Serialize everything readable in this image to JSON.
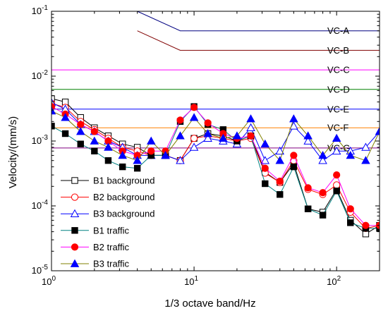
{
  "chart_data": {
    "type": "line",
    "xlabel": "1/3 octave band/Hz",
    "ylabel": "Velocity/(mm/s)",
    "x_scale": "log",
    "y_scale": "log",
    "xlim": [
      1,
      200
    ],
    "ylim": [
      1e-05,
      0.1
    ],
    "grid": false,
    "legend_position": "bottom-left",
    "x_ticks": [
      {
        "value": 1,
        "base": "10",
        "exp": "0"
      },
      {
        "value": 10,
        "base": "10",
        "exp": "1"
      },
      {
        "value": 100,
        "base": "10",
        "exp": "2"
      }
    ],
    "y_ticks": [
      {
        "value": 1e-05,
        "base": "10",
        "exp": "-5"
      },
      {
        "value": 0.0001,
        "base": "10",
        "exp": "-4"
      },
      {
        "value": 0.001,
        "base": "10",
        "exp": "-3"
      },
      {
        "value": 0.01,
        "base": "10",
        "exp": "-2"
      },
      {
        "value": 0.1,
        "base": "10",
        "exp": "-1"
      }
    ],
    "x": [
      1,
      1.25,
      1.6,
      2,
      2.5,
      3.15,
      4,
      5,
      6.3,
      8,
      10,
      12.5,
      16,
      20,
      25,
      31.5,
      40,
      50,
      63,
      80,
      100,
      125,
      160,
      200
    ],
    "series": [
      {
        "name": "B1 background",
        "color": "#000000",
        "marker": "square",
        "filled": false,
        "values": [
          0.0045,
          0.004,
          0.0023,
          0.0016,
          0.0012,
          0.0009,
          0.0008,
          0.0006,
          0.0006,
          0.0005,
          0.0011,
          0.0013,
          0.0012,
          0.001,
          0.0012,
          0.00033,
          0.00023,
          0.00045,
          9e-05,
          8e-05,
          0.00018,
          6e-05,
          3.7e-05,
          5e-05
        ]
      },
      {
        "name": "B2 background",
        "color": "#ff0000",
        "marker": "circle",
        "filled": false,
        "values": [
          0.0038,
          0.0033,
          0.002,
          0.0015,
          0.0011,
          0.0008,
          0.0007,
          0.0006,
          0.0006,
          0.0005,
          0.0011,
          0.0012,
          0.0011,
          0.001,
          0.0011,
          0.00032,
          0.00023,
          0.0005,
          0.00018,
          0.00015,
          0.00021,
          8e-05,
          4.5e-05,
          5e-05
        ]
      },
      {
        "name": "B3 background",
        "color": "#0000ff",
        "marker": "triangle",
        "filled": false,
        "values": [
          0.0039,
          0.0031,
          0.0018,
          0.0014,
          0.001,
          0.0008,
          0.0006,
          0.0006,
          0.0006,
          0.0005,
          0.0008,
          0.0011,
          0.001,
          0.0009,
          0.0016,
          0.0005,
          0.0007,
          0.0017,
          0.001,
          0.0005,
          0.0007,
          0.0007,
          0.0008,
          0.0014
        ]
      },
      {
        "name": "B1 traffic",
        "color": "#008080",
        "marker": "square",
        "filled": true,
        "marker_color": "#000000",
        "values": [
          0.0017,
          0.0013,
          0.0009,
          0.0007,
          0.0005,
          0.0004,
          0.00038,
          0.0006,
          0.0006,
          0.002,
          0.0034,
          0.0018,
          0.0015,
          0.001,
          0.0012,
          0.00022,
          0.00015,
          0.0004,
          9e-05,
          7.2e-05,
          0.00017,
          5.5e-05,
          4.5e-05,
          4.5e-05
        ]
      },
      {
        "name": "B2 traffic",
        "color": "#ff00ff",
        "marker": "circle",
        "filled": true,
        "marker_color": "#ff0000",
        "values": [
          0.0034,
          0.0026,
          0.0018,
          0.0014,
          0.001,
          0.0007,
          0.0006,
          0.0007,
          0.0007,
          0.0021,
          0.0033,
          0.0019,
          0.0013,
          0.0011,
          0.0012,
          0.00038,
          0.00024,
          0.0006,
          0.00019,
          0.00016,
          0.0003,
          9e-05,
          5e-05,
          5e-05
        ]
      },
      {
        "name": "B3 traffic",
        "color": "#808000",
        "marker": "triangle",
        "filled": true,
        "marker_color": "#0000ff",
        "values": [
          0.0029,
          0.0023,
          0.0014,
          0.001,
          0.0008,
          0.0006,
          0.0005,
          0.001,
          0.0006,
          0.0012,
          0.0023,
          0.0013,
          0.0011,
          0.0012,
          0.0022,
          0.0009,
          0.0005,
          0.0022,
          0.0012,
          0.0006,
          0.0011,
          0.0006,
          0.0005,
          0.0014
        ]
      }
    ],
    "criteria": [
      {
        "name": "VC-A",
        "color": "#000080",
        "value": 0.05,
        "start_x": 4,
        "slope_end_x": 8,
        "start_value": 0.1
      },
      {
        "name": "VC-B",
        "color": "#800000",
        "value": 0.025,
        "start_x": 4,
        "slope_end_x": 8,
        "start_value": 0.05
      },
      {
        "name": "VC-C",
        "color": "#ff00ff",
        "value": 0.0125
      },
      {
        "name": "VC-D",
        "color": "#008000",
        "value": 0.00625
      },
      {
        "name": "VC-E",
        "color": "#0000ff",
        "value": 0.0031
      },
      {
        "name": "VC-F",
        "color": "#ff8000",
        "value": 0.0016
      },
      {
        "name": "VC-G",
        "color": "#800080",
        "value": 0.00078
      }
    ]
  }
}
